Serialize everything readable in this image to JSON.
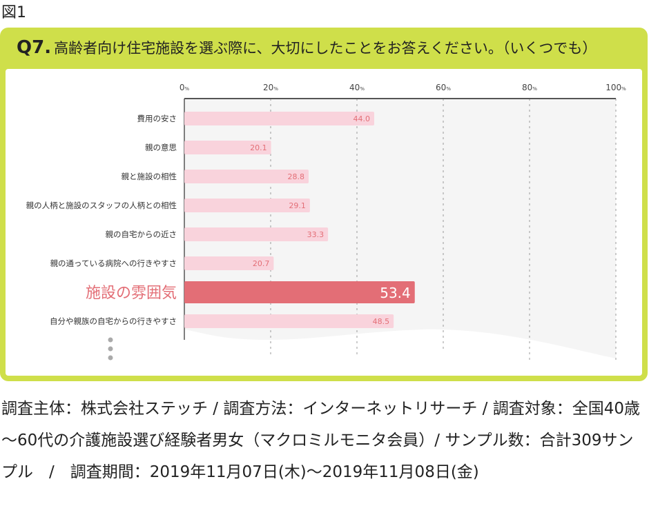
{
  "figure_label": "図1",
  "chart_data": {
    "type": "bar",
    "orientation": "horizontal",
    "title_prefix": "Q7.",
    "title": "高齢者向け住宅施設を選ぶ際に、大切にしたことをお答えください。（いくつでも）",
    "categories": [
      "費用の安さ",
      "親の意思",
      "親と施設の相性",
      "親の人柄と施設のスタッフの人柄との相性",
      "親の自宅からの近さ",
      "親の通っている病院への行きやすさ",
      "施設の雰囲気",
      "自分や親族の自宅からの行きやすさ"
    ],
    "values": [
      44.0,
      20.1,
      28.8,
      29.1,
      33.3,
      20.7,
      53.4,
      48.5
    ],
    "highlight": "施設の雰囲気",
    "xlim": [
      0,
      100
    ],
    "xticks": [
      "0",
      "20",
      "40",
      "60",
      "80",
      "100"
    ],
    "xtick_unit": "%",
    "grid": "dashed vertical",
    "truncated": true,
    "colors": {
      "bar": "#f9d3dc",
      "highlight": "#e36e76",
      "label": "#e36e76",
      "frame": "#cfdf4a"
    }
  },
  "footer": "調査主体：株式会社ステッチ / 調査方法：インターネットリサーチ / 調査対象：全国40歳～60代の介護施設選び経験者男女（マクロミルモニタ会員）/ サンプル数：合計309サンプル　/　調査期間：2019年11月07日(木)～2019年11月08日(金)"
}
